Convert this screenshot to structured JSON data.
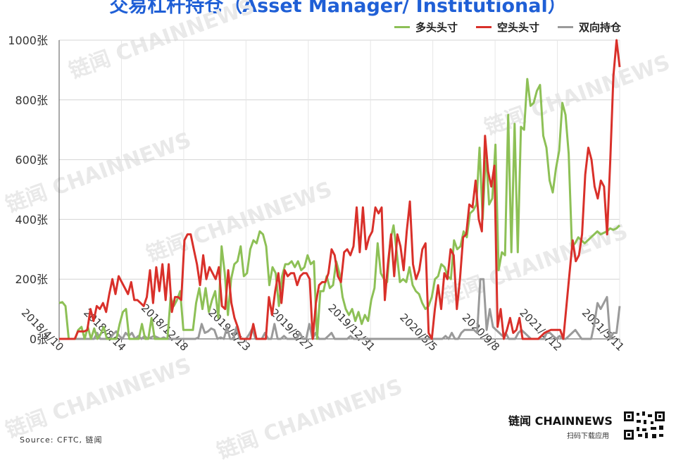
{
  "title": "交易杠杆持仓（Asset Manager/ Institutional）",
  "source": "Source: CFTC, 链闻",
  "brand": {
    "name": "链闻 CHAINNEWS",
    "sub": "扫码下载应用"
  },
  "watermark_text": "链闻 CHAINNEWS",
  "colors": {
    "long": "#8dc056",
    "short": "#d9302a",
    "spread": "#9a9a9a",
    "title": "#1f5fd6"
  },
  "chart_data": {
    "type": "line",
    "title": "交易杠杆持仓（Asset Manager/ Institutional）",
    "xlabel": "",
    "ylabel": "",
    "ylim": [
      0,
      1000
    ],
    "yticks": [
      0,
      200,
      400,
      600,
      800,
      1000
    ],
    "ytick_labels": [
      "0张",
      "200张",
      "400张",
      "600张",
      "800张",
      "1000张"
    ],
    "xtick_labels": [
      "2018/4/10",
      "2018/8/14",
      "2018/12/18",
      "2019/4/23",
      "2019/8/27",
      "2019/12/31",
      "2020/5/5",
      "2020/9/8",
      "2021/1/12",
      "2021/5/11"
    ],
    "grid": true,
    "legend_position": "top-right",
    "series": [
      {
        "name": "多头头寸",
        "color": "#8dc056",
        "values": [
          120,
          123,
          110,
          0,
          0,
          0,
          30,
          40,
          0,
          40,
          0,
          35,
          0,
          15,
          40,
          0,
          0,
          0,
          0,
          50,
          90,
          100,
          0,
          0,
          0,
          0,
          50,
          0,
          0,
          70,
          0,
          0,
          0,
          0,
          0,
          140,
          110,
          130,
          160,
          30,
          30,
          30,
          30,
          120,
          170,
          100,
          170,
          90,
          130,
          160,
          70,
          310,
          220,
          80,
          200,
          250,
          260,
          310,
          210,
          220,
          300,
          330,
          320,
          360,
          350,
          310,
          180,
          240,
          220,
          110,
          210,
          250,
          250,
          260,
          240,
          260,
          230,
          240,
          280,
          250,
          260,
          0,
          160,
          160,
          210,
          170,
          180,
          260,
          220,
          140,
          100,
          80,
          100,
          60,
          90,
          50,
          80,
          60,
          130,
          170,
          320,
          220,
          200,
          190,
          330,
          380,
          290,
          190,
          200,
          190,
          240,
          180,
          160,
          150,
          120,
          100,
          110,
          140,
          200,
          210,
          250,
          240,
          210,
          200,
          330,
          300,
          310,
          360,
          340,
          420,
          430,
          450,
          640,
          400,
          630,
          450,
          470,
          650,
          230,
          290,
          280,
          750,
          290,
          720,
          290,
          710,
          700,
          870,
          780,
          790,
          830,
          850,
          680,
          640,
          530,
          490,
          570,
          630,
          790,
          750,
          620,
          310,
          320,
          340,
          330,
          320,
          330,
          340,
          350,
          360,
          350,
          355,
          360,
          370,
          365,
          370,
          380
        ]
      },
      {
        "name": "空头头寸",
        "color": "#d9302a",
        "values": [
          0,
          0,
          0,
          0,
          0,
          0,
          25,
          25,
          25,
          30,
          100,
          60,
          110,
          100,
          120,
          90,
          150,
          200,
          150,
          210,
          190,
          170,
          150,
          190,
          130,
          130,
          120,
          110,
          140,
          230,
          120,
          240,
          160,
          250,
          130,
          250,
          90,
          140,
          140,
          130,
          330,
          350,
          350,
          300,
          250,
          180,
          280,
          200,
          240,
          220,
          200,
          240,
          110,
          100,
          230,
          120,
          70,
          40,
          0,
          0,
          0,
          0,
          50,
          0,
          0,
          0,
          0,
          140,
          80,
          160,
          220,
          120,
          230,
          210,
          220,
          220,
          180,
          210,
          220,
          220,
          200,
          0,
          120,
          180,
          190,
          190,
          220,
          300,
          280,
          210,
          190,
          290,
          300,
          280,
          310,
          440,
          290,
          440,
          300,
          340,
          360,
          440,
          420,
          440,
          130,
          250,
          350,
          210,
          350,
          310,
          230,
          360,
          460,
          250,
          200,
          230,
          300,
          320,
          20,
          0,
          100,
          180,
          100,
          220,
          200,
          300,
          280,
          100,
          200,
          340,
          350,
          450,
          440,
          530,
          400,
          360,
          680,
          560,
          510,
          580,
          40,
          100,
          0,
          30,
          70,
          20,
          30,
          70,
          0,
          0,
          0,
          0,
          0,
          0,
          10,
          20,
          25,
          30,
          30,
          30,
          30,
          0,
          110,
          220,
          330,
          260,
          280,
          350,
          550,
          640,
          600,
          510,
          470,
          530,
          510,
          350,
          600,
          880,
          1000,
          910
        ]
      },
      {
        "name": "双向持仓",
        "color": "#9a9a9a",
        "values": [
          0,
          0,
          0,
          0,
          0,
          0,
          0,
          0,
          0,
          0,
          0,
          0,
          20,
          0,
          0,
          0,
          0,
          15,
          25,
          10,
          0,
          20,
          10,
          20,
          0,
          10,
          0,
          10,
          0,
          5,
          10,
          5,
          0,
          5,
          0,
          0,
          0,
          0,
          0,
          0,
          0,
          0,
          0,
          0,
          5,
          50,
          20,
          25,
          35,
          30,
          0,
          5,
          0,
          40,
          0,
          0,
          40,
          0,
          0,
          0,
          15,
          35,
          0,
          0,
          0,
          20,
          0,
          0,
          50,
          0,
          0,
          10,
          0,
          0,
          0,
          0,
          20,
          0,
          0,
          50,
          0,
          20,
          0,
          0,
          0,
          10,
          20,
          0,
          0,
          0,
          0,
          0,
          10,
          0,
          0,
          0,
          0,
          0,
          0,
          0,
          0,
          0,
          0,
          0,
          0,
          0,
          0,
          0,
          0,
          0,
          0,
          0,
          0,
          0,
          0,
          0,
          0,
          0,
          0,
          0,
          0,
          0,
          10,
          0,
          20,
          0,
          0,
          20,
          30,
          30,
          30,
          30,
          20,
          200,
          200,
          30,
          100,
          40,
          30,
          20,
          10,
          20,
          0,
          0,
          0,
          20,
          30,
          20,
          10,
          0,
          0,
          0,
          0,
          0,
          20,
          20,
          10,
          0,
          10,
          0,
          0,
          10,
          20,
          30,
          15,
          0,
          0,
          0,
          0,
          50,
          120,
          100,
          120,
          140,
          0,
          20,
          20,
          110
        ]
      }
    ]
  }
}
